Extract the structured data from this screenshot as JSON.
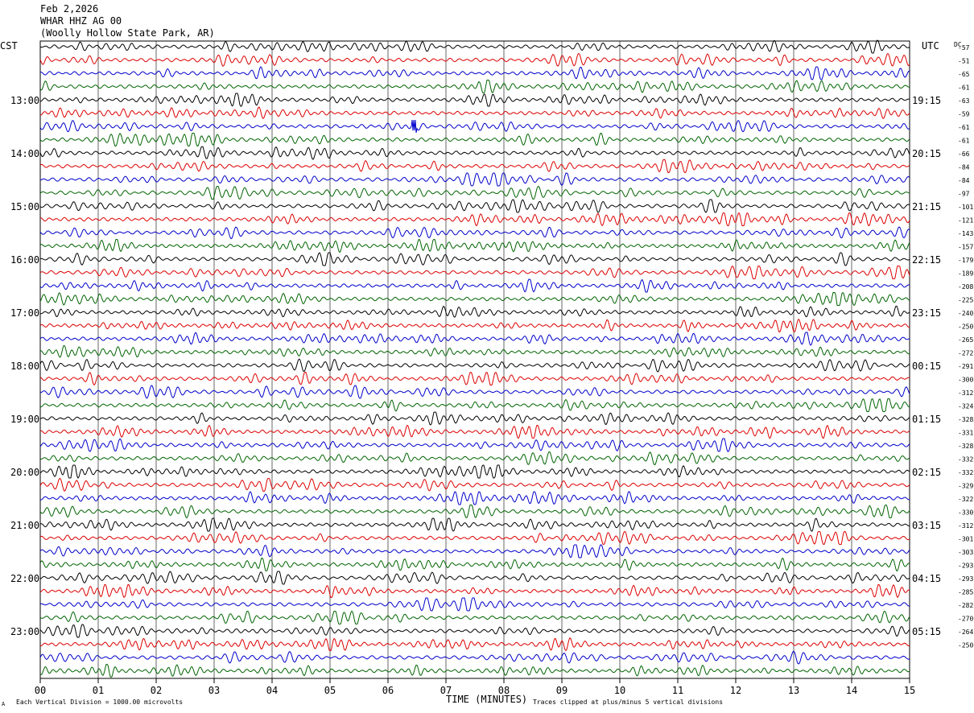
{
  "header": {
    "date": "Feb 2,2026",
    "station": "WHAR HHZ AG 00",
    "location": "(Woolly Hollow State Park, AR)"
  },
  "labels": {
    "left_tz": "CST",
    "right_tz": "UTC",
    "dc": "DC",
    "x_axis": "TIME (MINUTES)",
    "footer_left": "Each Vertical Division = 1000.00 microvolts",
    "footer_right": "Traces clipped at plus/minus 5 vertical divisions",
    "corner_mark": "A"
  },
  "colors": {
    "trace_cycle": [
      "#000000",
      "#dd0000",
      "#0000cc",
      "#006400"
    ],
    "grid": "#000000"
  },
  "chart_data": {
    "type": "line",
    "xlabel": "TIME (MINUTES)",
    "x_ticks": [
      "00",
      "01",
      "02",
      "03",
      "04",
      "05",
      "06",
      "07",
      "08",
      "09",
      "10",
      "11",
      "12",
      "13",
      "14",
      "15"
    ],
    "xlim": [
      0,
      15
    ],
    "rows": 48,
    "minutes_per_row": 15,
    "left_hour_labels": [
      "13:00",
      "14:00",
      "15:00",
      "16:00",
      "17:00",
      "18:00",
      "19:00",
      "20:00",
      "21:00",
      "22:00",
      "23:00"
    ],
    "right_hour_labels": [
      "19:15",
      "20:15",
      "21:15",
      "22:15",
      "23:15",
      "00:15",
      "01:15",
      "02:15",
      "03:15",
      "04:15",
      "05:15"
    ],
    "dc_offsets": [
      -57,
      -51,
      -65,
      -61,
      -63,
      -59,
      -61,
      -61,
      -66,
      -84,
      -84,
      -97,
      -101,
      -121,
      -143,
      -157,
      -179,
      -189,
      -208,
      -225,
      -240,
      -250,
      -265,
      -272,
      -291,
      -300,
      -312,
      -324,
      -328,
      -331,
      -328,
      -332,
      -332,
      -329,
      -322,
      -330,
      -312,
      -301,
      -303,
      -293,
      -293,
      -285,
      -282,
      -270,
      -264,
      -250
    ],
    "spikes": [
      {
        "row": 6,
        "minute": 6.45
      }
    ]
  }
}
